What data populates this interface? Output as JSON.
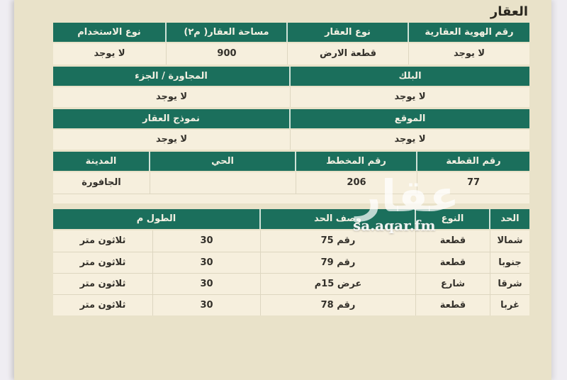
{
  "page_title": "العقار",
  "watermark": {
    "logo": "عقار",
    "site": "sa.aqar.fm"
  },
  "colors": {
    "header_green": "#1b6f5c",
    "page_beige": "#e9e2c9",
    "cell_cream": "#f6efdd",
    "outer_background": "#efedf2",
    "header_text": "#f3f0e2",
    "body_text": "#33302a"
  },
  "property_table": {
    "section1": {
      "headers": [
        "رقم الهوية العقارية",
        "نوع العقار",
        "مساحة العقار( م٢)",
        "نوع الاستخدام"
      ],
      "values": [
        "لا يوجد",
        "قطعة الارض",
        "900",
        "لا يوجد"
      ]
    },
    "section2": {
      "headers": [
        "البلك",
        "المجاورة / الجزء"
      ],
      "values": [
        "لا يوجد",
        "لا يوجد"
      ]
    },
    "section3": {
      "headers": [
        "الموقع",
        "نموذج العقار"
      ],
      "values": [
        "لا يوجد",
        "لا يوجد"
      ]
    },
    "section4": {
      "headers": [
        "رقم القطعة",
        "رقم المخطط",
        "الحي",
        "المدينة"
      ],
      "values": [
        "77",
        "206",
        "",
        "الجافورة"
      ]
    }
  },
  "boundaries_table": {
    "headers": [
      "الحد",
      "النوع",
      "وصف الحد",
      "الطول م"
    ],
    "rows": [
      {
        "boundary": "شمالا",
        "type": "قطعة",
        "description": "رقم 75",
        "length": "30",
        "length_text": "ثلاثون متر"
      },
      {
        "boundary": "جنوبا",
        "type": "قطعة",
        "description": "رقم 79",
        "length": "30",
        "length_text": "ثلاثون متر"
      },
      {
        "boundary": "شرقا",
        "type": "شارع",
        "description": "عرض 15م",
        "length": "30",
        "length_text": "ثلاثون متر"
      },
      {
        "boundary": "غربا",
        "type": "قطعة",
        "description": "رقم 78",
        "length": "30",
        "length_text": "ثلاثون متر"
      }
    ]
  }
}
